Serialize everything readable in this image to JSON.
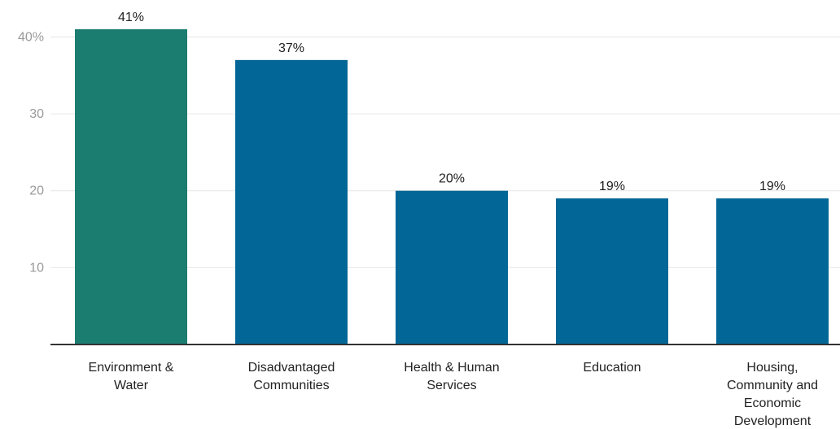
{
  "chart_data": {
    "type": "bar",
    "categories": [
      [
        "Environment &",
        "Water"
      ],
      [
        "Disadvantaged",
        "Communities"
      ],
      [
        "Health & Human",
        "Services"
      ],
      [
        "Education"
      ],
      [
        "Housing,",
        "Community and",
        "Economic",
        "Development"
      ]
    ],
    "values": [
      41,
      37,
      20,
      19,
      19
    ],
    "data_labels": [
      "41%",
      "37%",
      "20%",
      "19%",
      "19%"
    ],
    "yticks": [
      "10",
      "20",
      "30",
      "40%"
    ],
    "ytick_values": [
      10,
      20,
      30,
      40
    ],
    "ylim": [
      0,
      41
    ],
    "grid": true,
    "bar_colors": [
      "#1b7d70",
      "#026797",
      "#026797",
      "#026797",
      "#026797"
    ],
    "title": "",
    "xlabel": "",
    "ylabel": ""
  }
}
